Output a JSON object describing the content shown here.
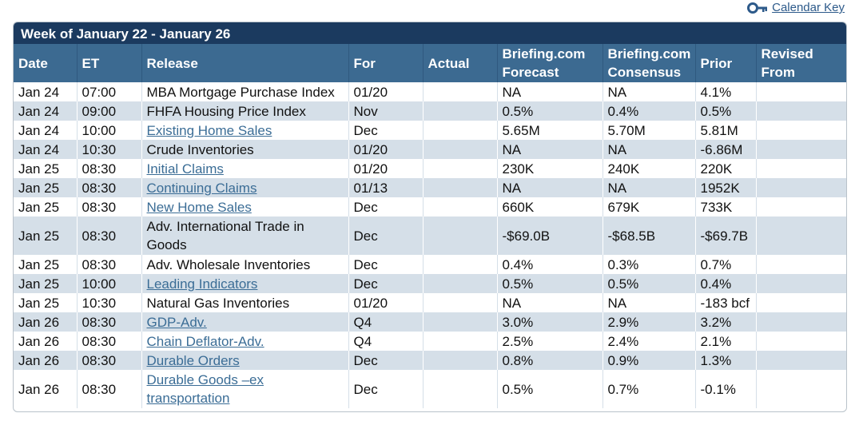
{
  "calendar_key": {
    "label": "Calendar Key",
    "icon": "key-icon"
  },
  "week_title": "Week of January 22 - January 26",
  "headers": {
    "date": "Date",
    "et": "ET",
    "release": "Release",
    "for": "For",
    "actual": "Actual",
    "forecast": [
      "Briefing.com",
      "Forecast"
    ],
    "consensus": [
      "Briefing.com",
      "Consensus"
    ],
    "prior": "Prior",
    "revised": [
      "Revised",
      "From"
    ]
  },
  "rows": [
    {
      "date": "Jan 24",
      "et": "07:00",
      "release": "MBA Mortgage Purchase Index",
      "link": false,
      "for": "01/20",
      "actual": "",
      "forecast": "NA",
      "consensus": "NA",
      "prior": "4.1%",
      "revised": ""
    },
    {
      "date": "Jan 24",
      "et": "09:00",
      "release": "FHFA Housing Price Index",
      "link": false,
      "for": "Nov",
      "actual": "",
      "forecast": "0.5%",
      "consensus": "0.4%",
      "prior": "0.5%",
      "revised": ""
    },
    {
      "date": "Jan 24",
      "et": "10:00",
      "release": "Existing Home Sales",
      "link": true,
      "for": "Dec",
      "actual": "",
      "forecast": "5.65M",
      "consensus": "5.70M",
      "prior": "5.81M",
      "revised": ""
    },
    {
      "date": "Jan 24",
      "et": "10:30",
      "release": "Crude Inventories",
      "link": false,
      "for": "01/20",
      "actual": "",
      "forecast": "NA",
      "consensus": "NA",
      "prior": "-6.86M",
      "revised": ""
    },
    {
      "date": "Jan 25",
      "et": "08:30",
      "release": "Initial Claims",
      "link": true,
      "for": "01/20",
      "actual": "",
      "forecast": "230K",
      "consensus": "240K",
      "prior": "220K",
      "revised": ""
    },
    {
      "date": "Jan 25",
      "et": "08:30",
      "release": "Continuing Claims",
      "link": true,
      "for": "01/13",
      "actual": "",
      "forecast": "NA",
      "consensus": "NA",
      "prior": "1952K",
      "revised": ""
    },
    {
      "date": "Jan 25",
      "et": "08:30",
      "release": "New Home Sales",
      "link": true,
      "for": "Dec",
      "actual": "",
      "forecast": "660K",
      "consensus": "679K",
      "prior": "733K",
      "revised": ""
    },
    {
      "date": "Jan 25",
      "et": "08:30",
      "release": "Adv. International Trade in Goods",
      "link": false,
      "for": "Dec",
      "actual": "",
      "forecast": "-$69.0B",
      "consensus": "-$68.5B",
      "prior": "-$69.7B",
      "revised": "",
      "tall": true
    },
    {
      "date": "Jan 25",
      "et": "08:30",
      "release": "Adv. Wholesale Inventories",
      "link": false,
      "for": "Dec",
      "actual": "",
      "forecast": "0.4%",
      "consensus": "0.3%",
      "prior": "0.7%",
      "revised": ""
    },
    {
      "date": "Jan 25",
      "et": "10:00",
      "release": "Leading Indicators",
      "link": true,
      "for": "Dec",
      "actual": "",
      "forecast": "0.5%",
      "consensus": "0.5%",
      "prior": "0.4%",
      "revised": ""
    },
    {
      "date": "Jan 25",
      "et": "10:30",
      "release": "Natural Gas Inventories",
      "link": false,
      "for": "01/20",
      "actual": "",
      "forecast": "NA",
      "consensus": "NA",
      "prior": "-183 bcf",
      "revised": ""
    },
    {
      "date": "Jan 26",
      "et": "08:30",
      "release": "GDP-Adv.",
      "link": true,
      "for": "Q4",
      "actual": "",
      "forecast": "3.0%",
      "consensus": "2.9%",
      "prior": "3.2%",
      "revised": ""
    },
    {
      "date": "Jan 26",
      "et": "08:30",
      "release": "Chain Deflator-Adv.",
      "link": true,
      "for": "Q4",
      "actual": "",
      "forecast": "2.5%",
      "consensus": "2.4%",
      "prior": "2.1%",
      "revised": ""
    },
    {
      "date": "Jan 26",
      "et": "08:30",
      "release": "Durable Orders",
      "link": true,
      "for": "Dec",
      "actual": "",
      "forecast": "0.8%",
      "consensus": "0.9%",
      "prior": "1.3%",
      "revised": ""
    },
    {
      "date": "Jan 26",
      "et": "08:30",
      "release": "Durable Goods –ex transportation",
      "link": true,
      "for": "Dec",
      "actual": "",
      "forecast": "0.5%",
      "consensus": "0.7%",
      "prior": "-0.1%",
      "revised": "",
      "tall": true
    }
  ]
}
